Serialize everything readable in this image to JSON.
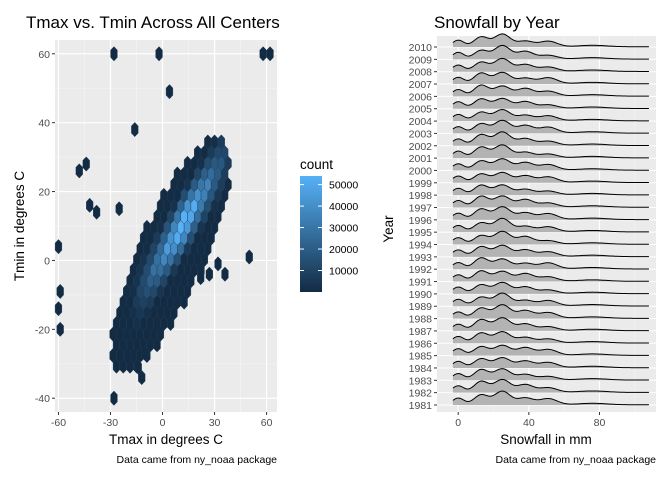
{
  "chart_data": [
    {
      "type": "hexbin",
      "title": "Tmax vs. Tmin Across All Centers",
      "xlabel": "Tmax in degrees C",
      "ylabel": "Tmin in degrees C",
      "caption": "Data came from ny_noaa package",
      "xlim": [
        -62,
        66
      ],
      "ylim": [
        -44,
        64
      ],
      "xticks": [
        -60,
        -30,
        0,
        30,
        60
      ],
      "yticks": [
        -40,
        -20,
        0,
        20,
        40,
        60
      ],
      "grid": true,
      "legend": {
        "title": "count",
        "position": "right",
        "range": [
          1,
          54000
        ],
        "ticks": [
          10000,
          20000,
          30000,
          40000,
          50000
        ],
        "low_color": "#132B43",
        "high_color": "#56B1F7"
      },
      "point_cloud_colors": {
        "outline": "#1b3a57"
      }
    },
    {
      "type": "ridgeline",
      "title": "Snowfall by Year",
      "xlabel": "Snowfall in mm",
      "ylabel": "Year",
      "caption": "Data came from ny_noaa package",
      "xlim": [
        -12,
        112
      ],
      "xticks": [
        0,
        40,
        80
      ],
      "years": [
        1981,
        1982,
        1983,
        1984,
        1985,
        1986,
        1987,
        1988,
        1989,
        1990,
        1991,
        1992,
        1993,
        1994,
        1995,
        1996,
        1997,
        1998,
        1999,
        2000,
        2001,
        2002,
        2003,
        2004,
        2005,
        2006,
        2007,
        2008,
        2009,
        2010
      ],
      "density_peaks_mm": [
        0,
        13,
        25,
        38,
        51,
        76
      ],
      "fill": "#b3b3b3",
      "grid": true
    }
  ]
}
